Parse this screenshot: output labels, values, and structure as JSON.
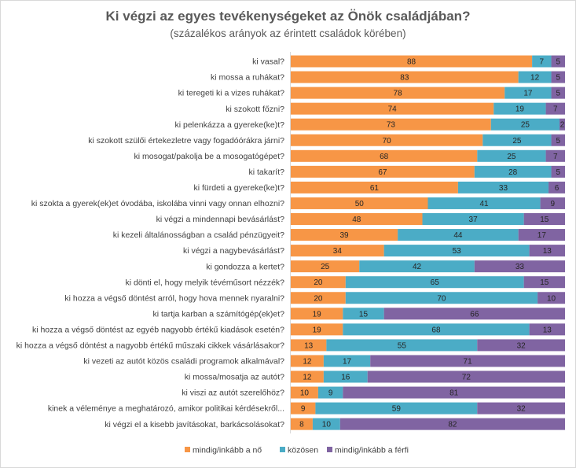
{
  "title": "Ki végzi az egyes tevékenységeket az Önök családjában?",
  "subtitle": "(százalékos arányok az érintett családok körében)",
  "chart_data": {
    "type": "bar",
    "orientation": "horizontal",
    "stacked": true,
    "title": "Ki végzi az egyes tevékenységeket az Önök családjában?",
    "subtitle": "(százalékos arányok az érintett családok körében)",
    "xlim": [
      0,
      100
    ],
    "legend_position": "bottom",
    "categories": [
      "ki vasal?",
      "ki mossa a ruhákat?",
      "ki teregeti ki a vizes ruhákat?",
      "ki szokott főzni?",
      "ki pelenkázza a gyereke(ke)t?",
      "ki szokott szülői értekezletre vagy fogadóórákra járni?",
      "ki mosogat/pakolja be a mosogatógépet?",
      "ki takarít?",
      "ki fürdeti a gyereke(ke)t?",
      "ki szokta a gyerek(ek)et óvodába, iskolába vinni vagy onnan elhozni?",
      "ki végzi a mindennapi bevásárlást?",
      "ki kezeli általánosságban a család pénzügyeit?",
      "ki végzi a nagybevásárlást?",
      "ki gondozza a kertet?",
      "ki dönti el, hogy melyik tévéműsort nézzék?",
      "ki hozza a végső döntést arról, hogy hova mennek nyaralni?",
      "ki tartja karban a számítógép(ek)et?",
      "ki hozza a végső döntést az egyéb nagyobb értékű kiadások esetén?",
      "ki hozza a végső döntést a nagyobb értékű műszaki cikkek vásárlásakor?",
      "ki vezeti az autót közös családi programok alkalmával?",
      "ki mossa/mosatja az autót?",
      "ki viszi az autót szerelőhöz?",
      "kinek a véleménye a meghatározó, amikor politikai kérdésekről...",
      "ki végzi el a kisebb javításokat, barkácsolásokat?"
    ],
    "series": [
      {
        "name": "mindig/inkább a nő",
        "color": "#f79646",
        "values": [
          88,
          83,
          78,
          74,
          73,
          70,
          68,
          67,
          61,
          50,
          48,
          39,
          34,
          25,
          20,
          20,
          19,
          19,
          13,
          12,
          12,
          10,
          9,
          8
        ]
      },
      {
        "name": "közösen",
        "color": "#4bacc6",
        "values": [
          7,
          12,
          17,
          19,
          25,
          25,
          25,
          28,
          33,
          41,
          37,
          44,
          53,
          42,
          65,
          70,
          15,
          68,
          55,
          17,
          16,
          9,
          59,
          10
        ]
      },
      {
        "name": "mindig/inkább a férfi",
        "color": "#8064a2",
        "values": [
          5,
          5,
          5,
          7,
          2,
          5,
          7,
          5,
          6,
          9,
          15,
          17,
          13,
          33,
          15,
          10,
          66,
          13,
          32,
          71,
          72,
          81,
          32,
          82
        ]
      }
    ]
  }
}
